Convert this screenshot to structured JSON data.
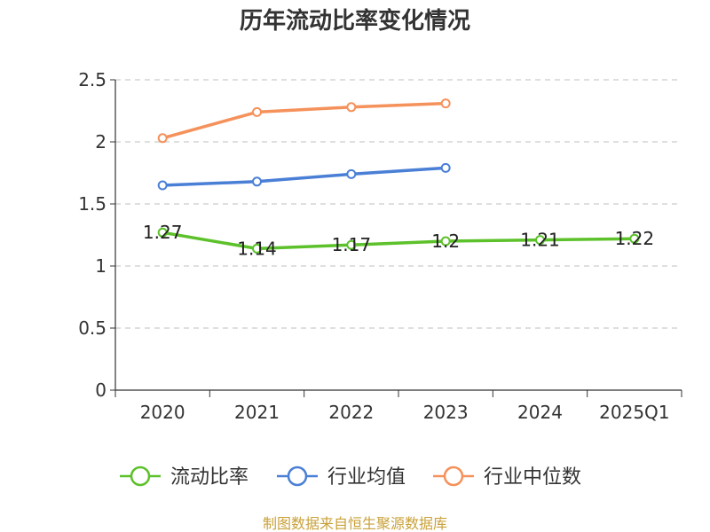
{
  "chart_data": {
    "type": "line",
    "title": "历年流动比率变化情况",
    "categories": [
      "2020",
      "2021",
      "2022",
      "2023",
      "2024",
      "2025Q1"
    ],
    "ylim": [
      0,
      2.5
    ],
    "yticks": [
      0,
      0.5,
      1,
      1.5,
      2,
      2.5
    ],
    "ytick_labels": [
      "0",
      "0.5",
      "1",
      "1.5",
      "2",
      "2.5"
    ],
    "grid": true,
    "legend_position": "bottom",
    "series": [
      {
        "name": "流动比率",
        "color": "#5cc12a",
        "values": [
          1.27,
          1.14,
          1.17,
          1.2,
          1.21,
          1.22
        ],
        "labels": [
          "1.27",
          "1.14",
          "1.17",
          "1.2",
          "1.21",
          "1.22"
        ]
      },
      {
        "name": "行业均值",
        "color": "#4a7fd6",
        "values": [
          1.65,
          1.68,
          1.74,
          1.79,
          null,
          null
        ]
      },
      {
        "name": "行业中位数",
        "color": "#f5915a",
        "values": [
          2.03,
          2.24,
          2.28,
          2.31,
          null,
          null
        ]
      }
    ],
    "source": "制图数据来自恒生聚源数据库"
  }
}
